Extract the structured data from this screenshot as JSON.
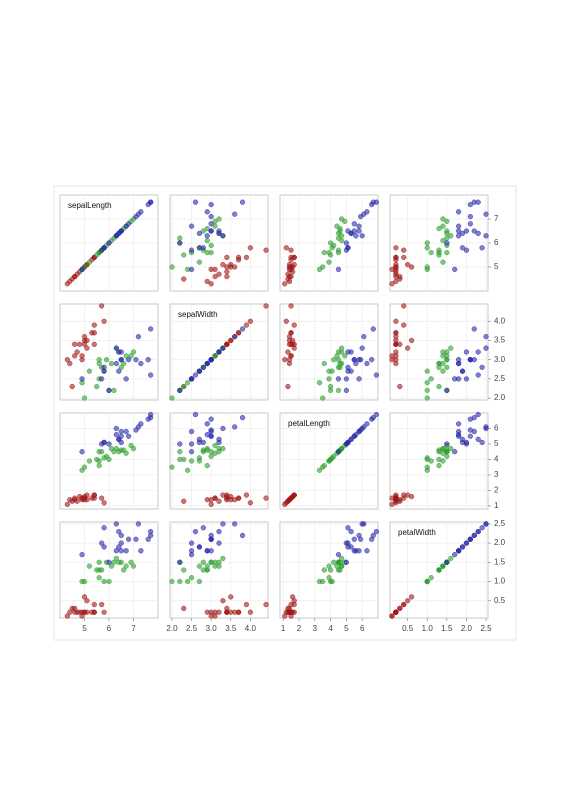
{
  "chart_data": {
    "type": "scatter_matrix",
    "grid": true,
    "variables": [
      {
        "label": "sepalLength",
        "lim": [
          4.0,
          8.0
        ],
        "ticks": [
          5,
          6,
          7
        ]
      },
      {
        "label": "sepalWidth",
        "lim": [
          1.95,
          4.45
        ],
        "ticks": [
          {
            "value": 2,
            "label": "2.0"
          },
          2.5,
          {
            "value": 3,
            "label": "3.0"
          },
          3.5,
          {
            "value": 4,
            "label": "4.0"
          }
        ]
      },
      {
        "label": "petalLength",
        "lim": [
          0.8,
          7.0
        ],
        "ticks": [
          1,
          2,
          3,
          4,
          5,
          6
        ]
      },
      {
        "label": "petalWidth",
        "lim": [
          0.05,
          2.55
        ],
        "ticks": [
          0.5,
          {
            "value": 1,
            "label": "1.0"
          },
          1.5,
          {
            "value": 2,
            "label": "2.0"
          },
          2.5
        ]
      }
    ],
    "series": [
      {
        "color": "#a01818",
        "values": [
          [
            5.1,
            3.5,
            1.4,
            0.2
          ],
          [
            4.9,
            3.0,
            1.4,
            0.2
          ],
          [
            4.7,
            3.2,
            1.3,
            0.2
          ],
          [
            4.6,
            3.1,
            1.5,
            0.2
          ],
          [
            5.0,
            3.6,
            1.4,
            0.2
          ],
          [
            5.4,
            3.9,
            1.7,
            0.4
          ],
          [
            4.6,
            3.4,
            1.4,
            0.3
          ],
          [
            5.0,
            3.4,
            1.5,
            0.2
          ],
          [
            4.4,
            2.9,
            1.4,
            0.2
          ],
          [
            4.9,
            3.1,
            1.5,
            0.1
          ],
          [
            5.4,
            3.7,
            1.5,
            0.2
          ],
          [
            4.8,
            3.4,
            1.6,
            0.2
          ],
          [
            4.3,
            3.0,
            1.1,
            0.1
          ],
          [
            5.8,
            4.0,
            1.2,
            0.2
          ],
          [
            5.7,
            4.4,
            1.5,
            0.4
          ],
          [
            5.4,
            3.4,
            1.7,
            0.2
          ],
          [
            5.1,
            3.3,
            1.7,
            0.5
          ],
          [
            4.5,
            2.3,
            1.3,
            0.3
          ],
          [
            5.0,
            3.5,
            1.6,
            0.6
          ],
          [
            5.3,
            3.7,
            1.5,
            0.2
          ]
        ]
      },
      {
        "color": "#2e9e2e",
        "values": [
          [
            7.0,
            3.2,
            4.7,
            1.4
          ],
          [
            6.4,
            3.2,
            4.5,
            1.5
          ],
          [
            6.9,
            3.1,
            4.9,
            1.5
          ],
          [
            5.5,
            2.3,
            4.0,
            1.3
          ],
          [
            6.5,
            2.8,
            4.6,
            1.5
          ],
          [
            5.7,
            2.8,
            4.5,
            1.3
          ],
          [
            6.3,
            3.3,
            4.7,
            1.6
          ],
          [
            4.9,
            2.4,
            3.3,
            1.0
          ],
          [
            6.6,
            2.9,
            4.6,
            1.3
          ],
          [
            5.2,
            2.7,
            3.9,
            1.4
          ],
          [
            5.0,
            2.0,
            3.5,
            1.0
          ],
          [
            5.9,
            3.0,
            4.2,
            1.5
          ],
          [
            6.0,
            2.2,
            4.0,
            1.0
          ],
          [
            6.1,
            2.9,
            4.7,
            1.4
          ],
          [
            5.6,
            2.9,
            3.6,
            1.3
          ],
          [
            6.7,
            3.1,
            4.4,
            1.4
          ],
          [
            5.6,
            3.0,
            4.5,
            1.5
          ],
          [
            5.8,
            2.7,
            4.1,
            1.0
          ],
          [
            6.2,
            2.2,
            4.5,
            1.5
          ],
          [
            5.6,
            2.5,
            3.9,
            1.1
          ]
        ]
      },
      {
        "color": "#2a2aa8",
        "values": [
          [
            6.3,
            3.3,
            6.0,
            2.5
          ],
          [
            5.8,
            2.7,
            5.1,
            1.9
          ],
          [
            7.1,
            3.0,
            5.9,
            2.1
          ],
          [
            6.3,
            2.9,
            5.6,
            1.8
          ],
          [
            6.5,
            3.0,
            5.8,
            2.2
          ],
          [
            7.6,
            3.0,
            6.6,
            2.1
          ],
          [
            4.9,
            2.5,
            4.5,
            1.7
          ],
          [
            7.3,
            2.9,
            6.3,
            1.8
          ],
          [
            6.7,
            2.5,
            5.8,
            1.8
          ],
          [
            7.2,
            3.6,
            6.1,
            2.5
          ],
          [
            6.5,
            3.2,
            5.1,
            2.0
          ],
          [
            6.4,
            2.7,
            5.3,
            1.9
          ],
          [
            6.8,
            3.0,
            5.5,
            2.1
          ],
          [
            5.7,
            2.5,
            5.0,
            2.0
          ],
          [
            5.8,
            2.8,
            5.1,
            2.4
          ],
          [
            6.4,
            3.2,
            5.3,
            2.3
          ],
          [
            6.5,
            3.0,
            5.5,
            1.8
          ],
          [
            7.7,
            3.8,
            6.7,
            2.2
          ],
          [
            7.7,
            2.6,
            6.9,
            2.3
          ],
          [
            6.0,
            2.2,
            5.0,
            1.5
          ]
        ]
      }
    ]
  }
}
